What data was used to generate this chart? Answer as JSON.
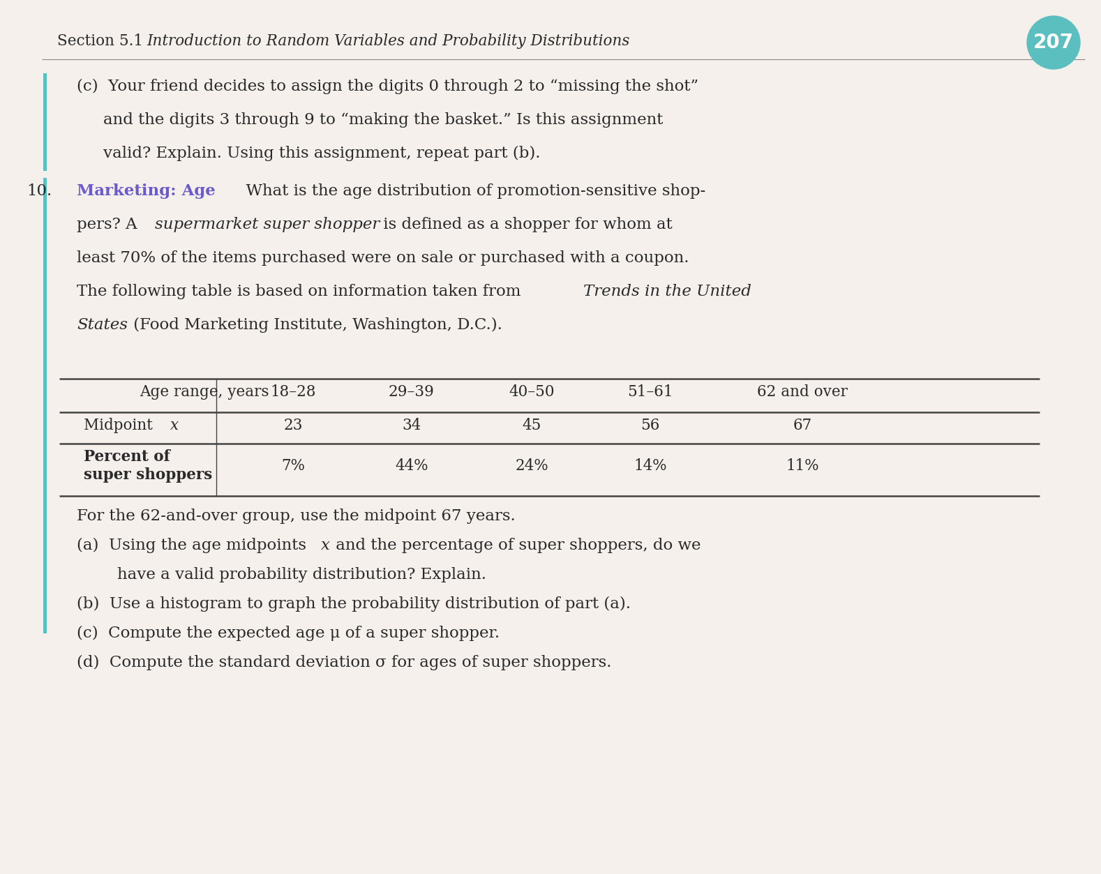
{
  "bg_color": "#f5f0eb",
  "page_bg": "#f5f0eb",
  "header_section": "Section 5.1",
  "header_title": "Introduction to Random Variables and Probability Distributions",
  "page_number": "207",
  "page_badge_color": "#5bbfbf",
  "text_color": "#2a2a2a",
  "left_bar_color": "#5bbfbf",
  "marketing_label_color": "#6a5acd",
  "table_line_color": "#444444",
  "table_headers": [
    "Age range, years",
    "18–28",
    "29–39",
    "40–50",
    "51–61",
    "62 and over"
  ],
  "table_row1_label": "Midpoint ",
  "table_row1_label_italic": "x",
  "table_row1_values": [
    "23",
    "34",
    "45",
    "56",
    "67"
  ],
  "table_row2_label1": "Percent of",
  "table_row2_label2": "super shoppers",
  "table_row2_values": [
    "7%",
    "44%",
    "24%",
    "14%",
    "11%"
  ],
  "font_size_header": 15.5,
  "font_size_body": 16.5,
  "font_size_table": 15.5,
  "font_size_badge": 20
}
